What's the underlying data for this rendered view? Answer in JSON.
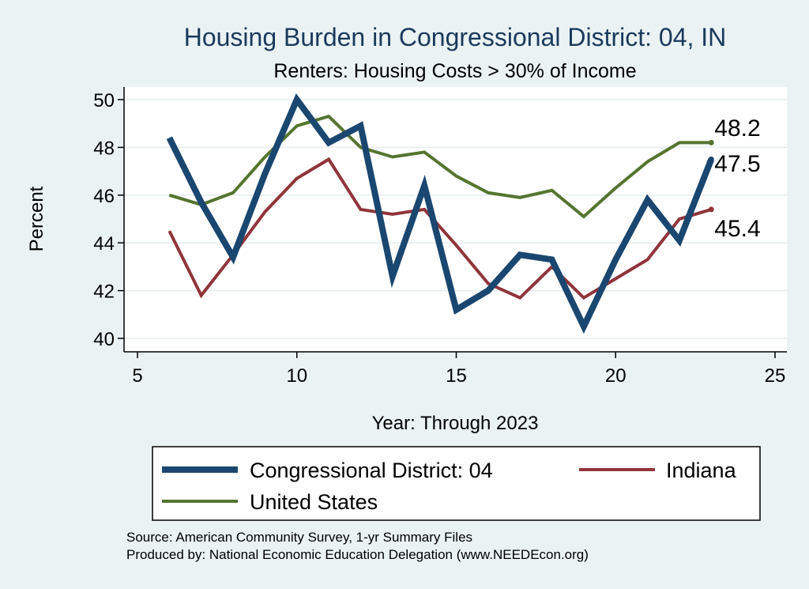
{
  "chart_data": {
    "type": "line",
    "title": "Housing Burden in Congressional District:  04, IN",
    "subtitle": "Renters: Housing Costs > 30% of Income",
    "xlabel": "Year: Through 2023",
    "ylabel": "Percent",
    "xlim": [
      5,
      25
    ],
    "ylim": [
      40,
      50
    ],
    "xticks": [
      5,
      10,
      15,
      20,
      25
    ],
    "yticks": [
      40,
      42,
      44,
      46,
      48,
      50
    ],
    "grid": true,
    "legend_position": "bottom",
    "x": [
      6,
      7,
      8,
      9,
      10,
      11,
      12,
      13,
      14,
      15,
      16,
      17,
      18,
      19,
      20,
      21,
      22,
      23
    ],
    "series": [
      {
        "name": "Congressional District:  04",
        "color": "#1a476f",
        "values": [
          48.4,
          45.7,
          43.4,
          46.9,
          50.0,
          48.2,
          48.9,
          42.6,
          46.4,
          41.2,
          42.0,
          43.5,
          43.3,
          40.5,
          43.3,
          45.8,
          44.1,
          47.5
        ],
        "end_label": "47.5"
      },
      {
        "name": "Indiana",
        "color": "#90353b",
        "values": [
          44.5,
          41.8,
          43.5,
          45.3,
          46.7,
          47.5,
          45.4,
          45.2,
          45.4,
          43.9,
          42.3,
          41.7,
          43.0,
          41.7,
          42.5,
          43.3,
          45.0,
          45.4
        ],
        "end_label": "45.4"
      },
      {
        "name": "United States",
        "color": "#55752f",
        "values": [
          46.0,
          45.6,
          46.1,
          47.6,
          48.9,
          49.3,
          48.0,
          47.6,
          47.8,
          46.8,
          46.1,
          45.9,
          46.2,
          45.1,
          46.3,
          47.4,
          48.2,
          48.2
        ],
        "end_label": "48.2"
      }
    ]
  },
  "source_lines": [
    "Source: American Community Survey, 1-yr Summary Files",
    "Produced by: National Economic Education Delegation (www.NEEDEcon.org)"
  ]
}
